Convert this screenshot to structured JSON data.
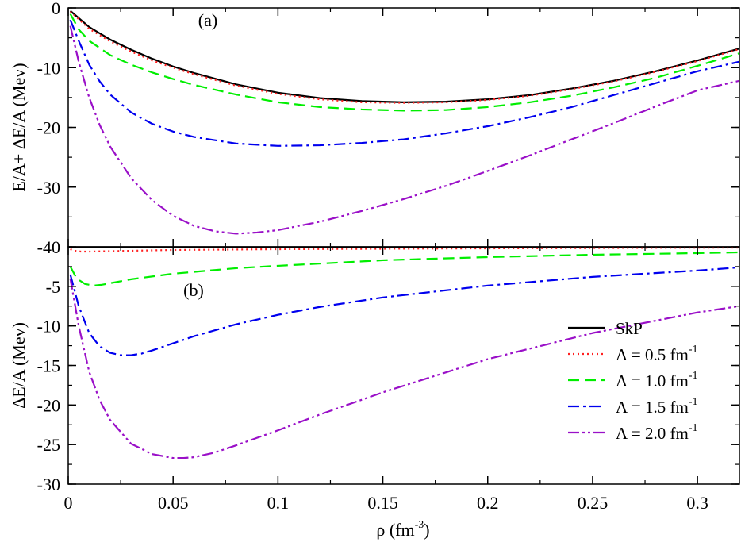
{
  "chart_data": {
    "type": "line",
    "x_axis": {
      "label_main": "ρ (fm",
      "label_sup": "-3",
      "label_end": ")",
      "range": [
        0,
        0.32
      ],
      "ticks": [
        {
          "value": 0,
          "label": "0"
        },
        {
          "value": 0.05,
          "label": "0.05"
        },
        {
          "value": 0.1,
          "label": "0.1"
        },
        {
          "value": 0.15,
          "label": "0.15"
        },
        {
          "value": 0.2,
          "label": "0.2"
        },
        {
          "value": 0.25,
          "label": "0.25"
        },
        {
          "value": 0.3,
          "label": "0.3"
        }
      ]
    },
    "series_styles": [
      {
        "key": "skp",
        "color": "#000000",
        "dash": "none",
        "width": 2.2
      },
      {
        "key": "l05",
        "color": "#ff2020",
        "dash": "2,4",
        "width": 2.2
      },
      {
        "key": "l10",
        "color": "#00ee00",
        "dash": "14,7",
        "width": 2.2
      },
      {
        "key": "l15",
        "color": "#0000ee",
        "dash": "14,5,3,5",
        "width": 2.2
      },
      {
        "key": "l20",
        "color": "#9a10c8",
        "dash": "14,4,3,4,3,4",
        "width": 2.2
      }
    ],
    "panels": [
      {
        "id": "a",
        "label": "(a)",
        "ylabel": "E/A+ ΔE/A (Mev)",
        "ylim": [
          -40,
          0
        ],
        "yticks": [
          {
            "value": 0,
            "label": "0"
          },
          {
            "value": -10,
            "label": "-10"
          },
          {
            "value": -20,
            "label": "-20"
          },
          {
            "value": -30,
            "label": "-30"
          },
          {
            "value": -40,
            "label": "-40"
          }
        ],
        "series": [
          {
            "key": "skp",
            "x": [
              0.001,
              0.01,
              0.02,
              0.03,
              0.04,
              0.05,
              0.06,
              0.08,
              0.1,
              0.12,
              0.14,
              0.16,
              0.18,
              0.2,
              0.22,
              0.24,
              0.26,
              0.28,
              0.3,
              0.32
            ],
            "y": [
              -0.5,
              -3.2,
              -5.3,
              -7.0,
              -8.5,
              -9.8,
              -10.9,
              -12.8,
              -14.2,
              -15.1,
              -15.6,
              -15.8,
              -15.7,
              -15.3,
              -14.6,
              -13.5,
              -12.2,
              -10.6,
              -8.8,
              -6.8
            ]
          },
          {
            "key": "l05",
            "x": [
              0.001,
              0.01,
              0.02,
              0.03,
              0.04,
              0.05,
              0.06,
              0.08,
              0.1,
              0.12,
              0.14,
              0.16,
              0.18,
              0.2,
              0.22,
              0.24,
              0.26,
              0.28,
              0.3,
              0.32
            ],
            "y": [
              -0.6,
              -3.5,
              -5.6,
              -7.3,
              -8.8,
              -10.0,
              -11.1,
              -13.0,
              -14.4,
              -15.3,
              -15.8,
              -15.9,
              -15.8,
              -15.4,
              -14.7,
              -13.6,
              -12.3,
              -10.7,
              -8.9,
              -6.9
            ]
          },
          {
            "key": "l10",
            "x": [
              0.001,
              0.005,
              0.01,
              0.02,
              0.03,
              0.04,
              0.05,
              0.06,
              0.08,
              0.1,
              0.12,
              0.14,
              0.16,
              0.18,
              0.2,
              0.22,
              0.24,
              0.26,
              0.28,
              0.3,
              0.32
            ],
            "y": [
              -1.0,
              -3.6,
              -5.5,
              -7.9,
              -9.5,
              -10.8,
              -11.9,
              -12.9,
              -14.5,
              -15.8,
              -16.6,
              -17.0,
              -17.2,
              -17.1,
              -16.6,
              -15.8,
              -14.7,
              -13.3,
              -11.7,
              -9.7,
              -7.6
            ]
          },
          {
            "key": "l15",
            "x": [
              0.001,
              0.005,
              0.01,
              0.015,
              0.02,
              0.03,
              0.04,
              0.05,
              0.06,
              0.08,
              0.1,
              0.12,
              0.14,
              0.16,
              0.18,
              0.2,
              0.22,
              0.24,
              0.26,
              0.28,
              0.3,
              0.32
            ],
            "y": [
              -2.0,
              -5.5,
              -9.5,
              -12.3,
              -14.5,
              -17.5,
              -19.4,
              -20.7,
              -21.6,
              -22.7,
              -23.1,
              -23.0,
              -22.6,
              -22.0,
              -21.0,
              -19.8,
              -18.3,
              -16.6,
              -14.6,
              -12.6,
              -10.6,
              -9.0
            ]
          },
          {
            "key": "l20",
            "x": [
              0.001,
              0.005,
              0.01,
              0.015,
              0.02,
              0.03,
              0.04,
              0.05,
              0.06,
              0.07,
              0.08,
              0.09,
              0.1,
              0.12,
              0.14,
              0.16,
              0.18,
              0.2,
              0.22,
              0.24,
              0.26,
              0.28,
              0.3,
              0.32
            ],
            "y": [
              -3.0,
              -9.0,
              -15.0,
              -19.6,
              -23.2,
              -28.5,
              -32.2,
              -34.8,
              -36.5,
              -37.4,
              -37.8,
              -37.6,
              -37.2,
              -35.8,
              -34.0,
              -32.0,
              -29.8,
              -27.3,
              -24.7,
              -22.0,
              -19.3,
              -16.5,
              -13.8,
              -12.2
            ]
          }
        ]
      },
      {
        "id": "b",
        "label": "(b)",
        "ylabel": "ΔE/A (Mev)",
        "ylim": [
          -30,
          0
        ],
        "yticks": [
          {
            "value": -5,
            "label": "-5"
          },
          {
            "value": -10,
            "label": "-10"
          },
          {
            "value": -15,
            "label": "-15"
          },
          {
            "value": -20,
            "label": "-20"
          },
          {
            "value": -25,
            "label": "-25"
          },
          {
            "value": -30,
            "label": "-30"
          }
        ],
        "series": [
          {
            "key": "skp",
            "x": [
              0,
              0.32
            ],
            "y": [
              0,
              0
            ]
          },
          {
            "key": "l05",
            "x": [
              0.001,
              0.003,
              0.006,
              0.01,
              0.05,
              0.1,
              0.2,
              0.32
            ],
            "y": [
              -0.3,
              -0.5,
              -0.6,
              -0.6,
              -0.4,
              -0.3,
              -0.2,
              -0.1
            ]
          },
          {
            "key": "l10",
            "x": [
              0.001,
              0.004,
              0.008,
              0.012,
              0.016,
              0.02,
              0.03,
              0.05,
              0.08,
              0.1,
              0.15,
              0.2,
              0.25,
              0.3,
              0.32
            ],
            "y": [
              -2.5,
              -4.0,
              -4.7,
              -4.9,
              -4.8,
              -4.6,
              -4.1,
              -3.4,
              -2.7,
              -2.4,
              -1.7,
              -1.3,
              -1.0,
              -0.8,
              -0.7
            ]
          },
          {
            "key": "l15",
            "x": [
              0.001,
              0.005,
              0.01,
              0.015,
              0.02,
              0.025,
              0.03,
              0.035,
              0.04,
              0.05,
              0.06,
              0.08,
              0.1,
              0.12,
              0.15,
              0.2,
              0.25,
              0.3,
              0.32
            ],
            "y": [
              -3.5,
              -7.5,
              -10.9,
              -12.6,
              -13.4,
              -13.7,
              -13.7,
              -13.5,
              -13.1,
              -12.2,
              -11.3,
              -9.8,
              -8.6,
              -7.6,
              -6.4,
              -4.9,
              -3.8,
              -3.0,
              -2.6
            ]
          },
          {
            "key": "l20",
            "x": [
              0.001,
              0.005,
              0.01,
              0.015,
              0.02,
              0.03,
              0.04,
              0.05,
              0.055,
              0.06,
              0.07,
              0.08,
              0.1,
              0.12,
              0.15,
              0.2,
              0.25,
              0.3,
              0.32
            ],
            "y": [
              -4.0,
              -10.0,
              -15.8,
              -19.4,
              -21.9,
              -24.9,
              -26.2,
              -26.7,
              -26.7,
              -26.6,
              -26.0,
              -25.1,
              -23.2,
              -21.2,
              -18.4,
              -14.2,
              -10.9,
              -8.3,
              -7.5
            ]
          }
        ],
        "legend": {
          "placement": "lower-right",
          "entries": [
            {
              "key": "skp",
              "text": "SkP",
              "sup": ""
            },
            {
              "key": "l05",
              "text": "Λ = 0.5 fm",
              "sup": "-1"
            },
            {
              "key": "l10",
              "text": "Λ = 1.0 fm",
              "sup": "-1"
            },
            {
              "key": "l15",
              "text": "Λ = 1.5 fm",
              "sup": "-1"
            },
            {
              "key": "l20",
              "text": "Λ = 2.0 fm",
              "sup": "-1"
            }
          ]
        }
      }
    ]
  }
}
